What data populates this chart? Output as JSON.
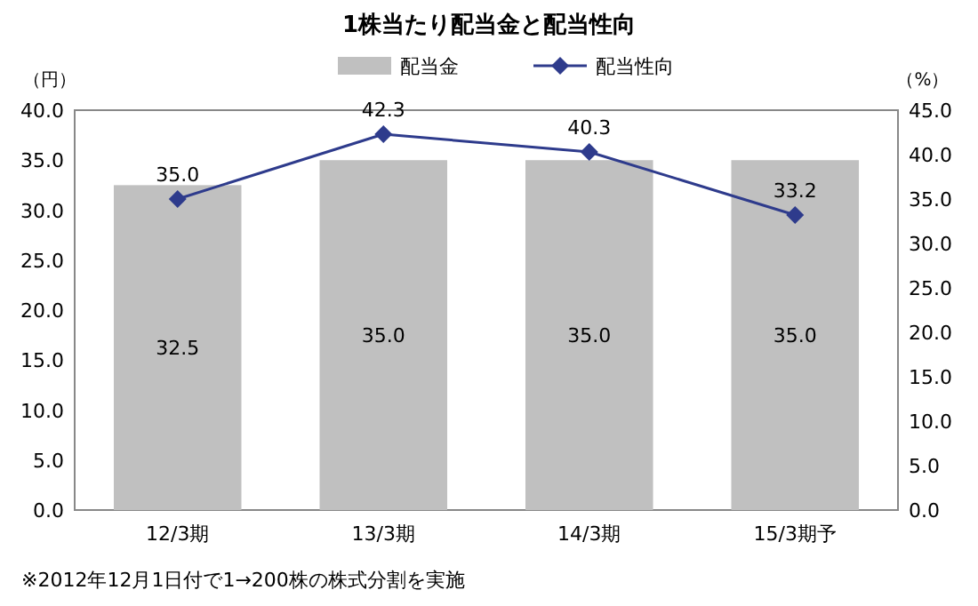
{
  "chart_data": {
    "type": "bar",
    "title": "1株当たり配当金と配当性向",
    "ylabel": "（円）",
    "y2label": "（%）",
    "categories": [
      "12/3期",
      "13/3期",
      "14/3期",
      "15/3期予"
    ],
    "series": [
      {
        "name": "配当金",
        "color": "#c0c0c0",
        "values": [
          32.5,
          35.0,
          35.0,
          35.0
        ],
        "value_labels": [
          "32.5",
          "35.0",
          "35.0",
          "35.0"
        ]
      },
      {
        "name": "配当性向",
        "type": "line",
        "axis": "y2",
        "color": "#2e3b8c",
        "marker": "diamond",
        "values": [
          35.0,
          42.3,
          40.3,
          33.2
        ],
        "value_labels": [
          "35.0",
          "42.3",
          "40.3",
          "33.2"
        ]
      }
    ],
    "ylim": [
      0,
      40
    ],
    "yticks": [
      {
        "value": 0,
        "label": "0.0"
      },
      {
        "value": 5,
        "label": "5.0"
      },
      {
        "value": 10,
        "label": "10.0"
      },
      {
        "value": 15,
        "label": "15.0"
      },
      {
        "value": 20,
        "label": "20.0"
      },
      {
        "value": 25,
        "label": "25.0"
      },
      {
        "value": 30,
        "label": "30.0"
      },
      {
        "value": 35,
        "label": "35.0"
      },
      {
        "value": 40,
        "label": "40.0"
      }
    ],
    "y2lim": [
      0,
      45
    ],
    "y2ticks": [
      {
        "value": 0,
        "label": "0.0"
      },
      {
        "value": 5,
        "label": "5.0"
      },
      {
        "value": 10,
        "label": "10.0"
      },
      {
        "value": 15,
        "label": "15.0"
      },
      {
        "value": 20,
        "label": "20.0"
      },
      {
        "value": 25,
        "label": "25.0"
      },
      {
        "value": 30,
        "label": "30.0"
      },
      {
        "value": 35,
        "label": "35.0"
      },
      {
        "value": 40,
        "label": "40.0"
      },
      {
        "value": 45,
        "label": "45.0"
      }
    ],
    "legend": "top",
    "annotations": [
      "※2012年12月1日付で1→200株の株式分割を実施"
    ]
  }
}
